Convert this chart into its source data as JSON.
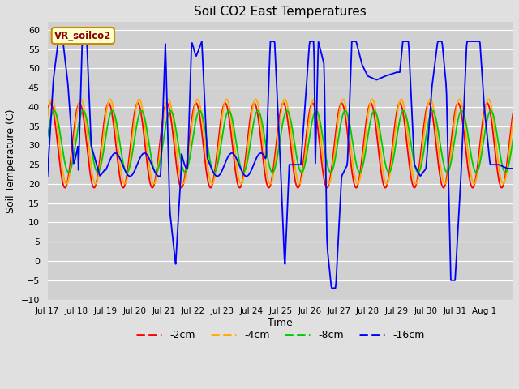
{
  "title": "Soil CO2 East Temperatures",
  "xlabel": "Time",
  "ylabel": "Soil Temperature (C)",
  "ylim": [
    -10,
    62
  ],
  "yticks": [
    -10,
    -5,
    0,
    5,
    10,
    15,
    20,
    25,
    30,
    35,
    40,
    45,
    50,
    55,
    60
  ],
  "legend_label": "VR_soilco2",
  "series_labels": [
    "-2cm",
    "-4cm",
    "-8cm",
    "-16cm"
  ],
  "series_colors": [
    "#ff0000",
    "#ffaa00",
    "#00cc00",
    "#0000ff"
  ],
  "background_color": "#e0e0e0",
  "plot_bg_color": "#d0d0d0",
  "grid_color": "#ffffff",
  "x_tick_labels": [
    "Jul 17",
    "Jul 18",
    "Jul 19",
    "Jul 20",
    "Jul 21",
    "Jul 22",
    "Jul 23",
    "Jul 24",
    "Jul 25",
    "Jul 26",
    "Jul 27",
    "Jul 28",
    "Jul 29",
    "Jul 30",
    "Jul 31",
    "Aug 1"
  ]
}
